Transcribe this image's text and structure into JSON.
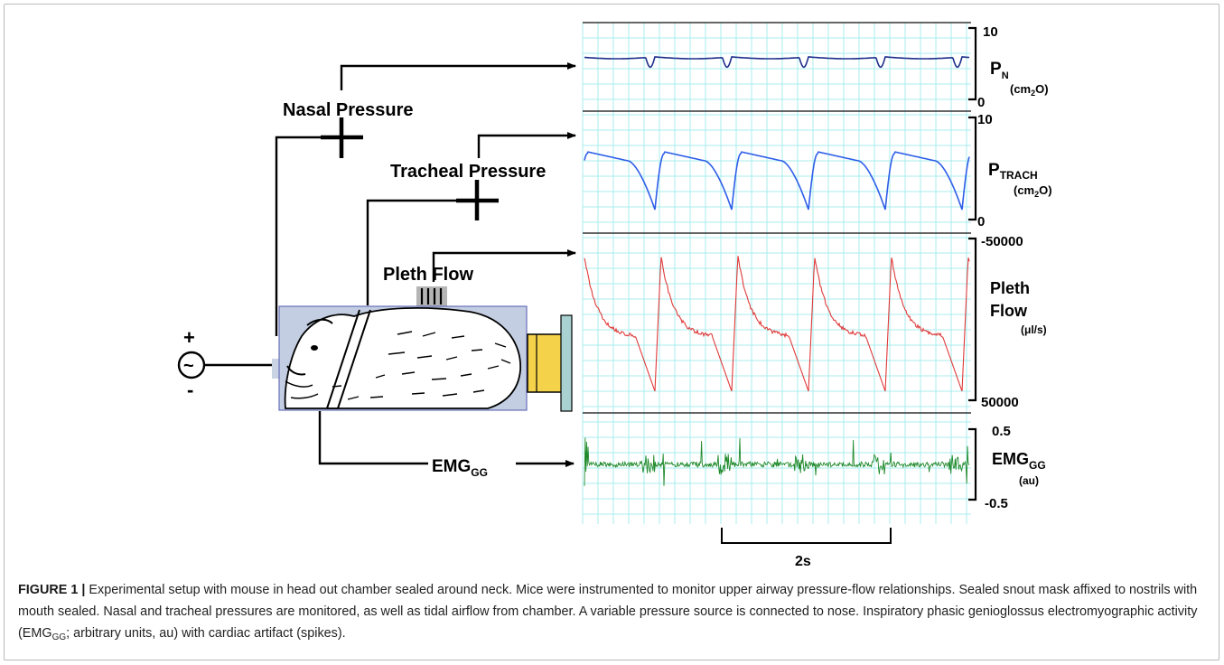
{
  "figure": {
    "labels": {
      "nasal_pressure": "Nasal Pressure",
      "tracheal_pressure": "Tracheal Pressure",
      "pleth_flow": "Pleth Flow",
      "emg_main": "EMG",
      "emg_sub": "GG",
      "source_plus": "+",
      "source_minus": "-",
      "source_symbol": "~"
    },
    "traces": [
      {
        "label_main": "P",
        "label_sub": "N",
        "unit_pre": "(cm",
        "unit_sub": "2",
        "unit_post": "O)",
        "scale_top": "10",
        "scale_bottom": "0",
        "color": "#1d2e8c"
      },
      {
        "label_main": "P",
        "label_sub": "TRACH",
        "unit_pre": "(cm",
        "unit_sub": "2",
        "unit_post": "O)",
        "scale_top": "10",
        "scale_bottom": "0",
        "color": "#2e5ee8"
      },
      {
        "label_line1": "Pleth",
        "label_line2": "Flow",
        "unit": "(μl/s)",
        "scale_top": "-50000",
        "scale_bottom": "50000",
        "color": "#e03a3a"
      },
      {
        "label_main": "EMG",
        "label_sub": "GG",
        "unit": "(au)",
        "scale_top": "0.5",
        "scale_bottom": "-0.5",
        "color": "#1f8a2c"
      }
    ],
    "time_scale": "2s",
    "grid_color": "#a8ecec"
  },
  "caption": {
    "label": "FIGURE 1 |",
    "text_1": " Experimental setup with mouse in head out chamber sealed around neck. Mice were instrumented to monitor upper airway pressure-flow relationships. Sealed snout mask affixed to nostrils with mouth sealed. Nasal and tracheal pressures are monitored, as well as tidal airflow from chamber. A variable pressure source is connected to nose. Inspiratory phasic genioglossus electromyographic activity (EMG",
    "sub": "GG",
    "text_2": "; arbitrary units, au) with cardiac artifact (spikes)."
  }
}
